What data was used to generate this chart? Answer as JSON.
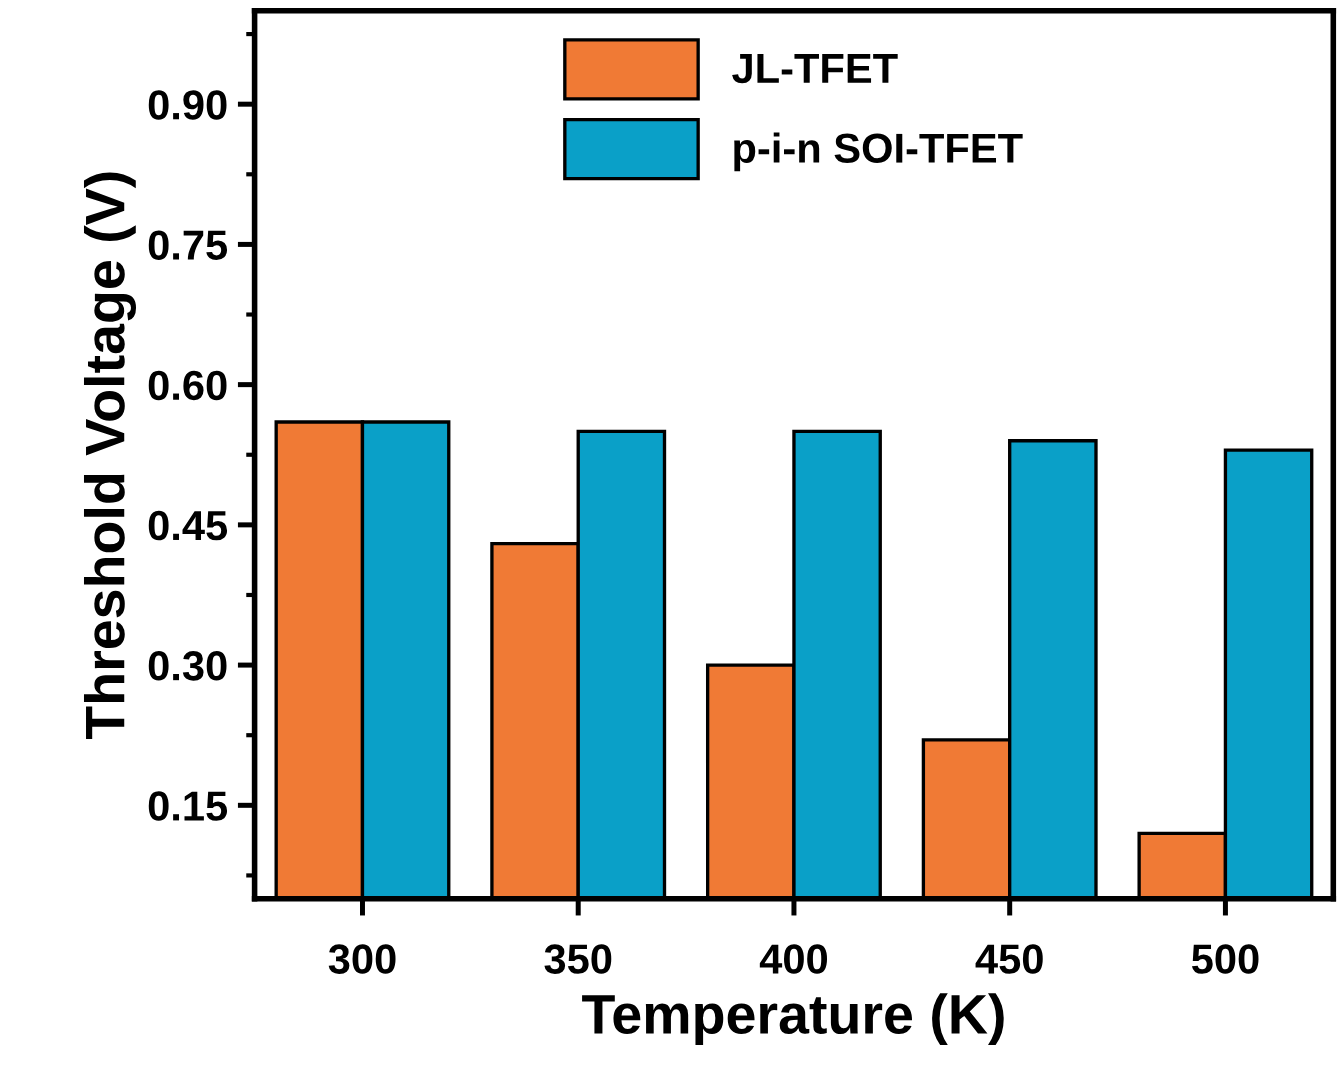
{
  "chart_data": {
    "type": "bar",
    "xlabel": "Temperature (K)",
    "ylabel": "Threshold Voltage (V)",
    "categories": [
      "300",
      "350",
      "400",
      "450",
      "500"
    ],
    "series": [
      {
        "name": "JL-TFET",
        "color": "#f07a35",
        "values": [
          0.56,
          0.43,
          0.3,
          0.22,
          0.12
        ]
      },
      {
        "name": "p-i-n SOI-TFET",
        "color": "#0aa0c8",
        "values": [
          0.56,
          0.55,
          0.55,
          0.54,
          0.53
        ]
      }
    ],
    "ylim": [
      0.05,
      1.0
    ],
    "yticks": [
      {
        "value": 0.15,
        "label": "0.15"
      },
      {
        "value": 0.3,
        "label": "0.30"
      },
      {
        "value": 0.45,
        "label": "0.45"
      },
      {
        "value": 0.6,
        "label": "0.60"
      },
      {
        "value": 0.75,
        "label": "0.75"
      },
      {
        "value": 0.9,
        "label": "0.90"
      }
    ],
    "grid": false,
    "legend": "top"
  }
}
